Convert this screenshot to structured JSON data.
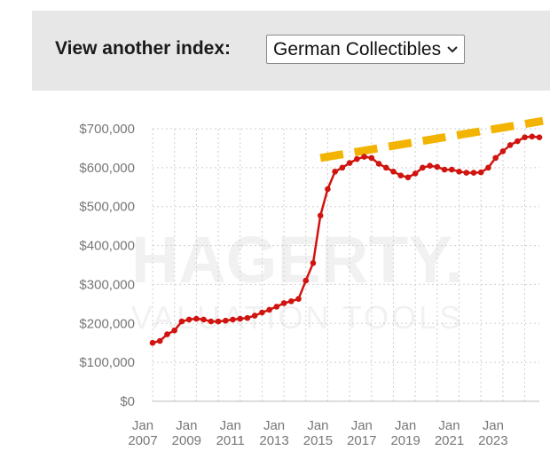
{
  "header": {
    "label": "View another index:",
    "selected_index": "German Collectibles"
  },
  "watermark": {
    "brand": "HAGERTY.",
    "subtitle": "VALUATION TOOLS"
  },
  "chart_data": {
    "type": "line",
    "title": "",
    "xlabel": "",
    "ylabel": "",
    "ylim": [
      0,
      700000
    ],
    "xlim": [
      "2007-01",
      "2024-09"
    ],
    "grid": true,
    "y_ticks": [
      {
        "value": 0,
        "label": "$0"
      },
      {
        "value": 100000,
        "label": "$100,000"
      },
      {
        "value": 200000,
        "label": "$200,000"
      },
      {
        "value": 300000,
        "label": "$300,000"
      },
      {
        "value": 400000,
        "label": "$400,000"
      },
      {
        "value": 500000,
        "label": "$500,000"
      },
      {
        "value": 600000,
        "label": "$600,000"
      },
      {
        "value": 700000,
        "label": "$700,000"
      }
    ],
    "x_ticks": [
      {
        "value": "2007-01",
        "label": [
          "Jan",
          "2007"
        ]
      },
      {
        "value": "2009-01",
        "label": [
          "Jan",
          "2009"
        ]
      },
      {
        "value": "2011-01",
        "label": [
          "Jan",
          "2011"
        ]
      },
      {
        "value": "2013-01",
        "label": [
          "Jan",
          "2013"
        ]
      },
      {
        "value": "2015-01",
        "label": [
          "Jan",
          "2015"
        ]
      },
      {
        "value": "2017-01",
        "label": [
          "Jan",
          "2017"
        ]
      },
      {
        "value": "2019-01",
        "label": [
          "Jan",
          "2019"
        ]
      },
      {
        "value": "2021-01",
        "label": [
          "Jan",
          "2021"
        ]
      },
      {
        "value": "2023-01",
        "label": [
          "Jan",
          "2023"
        ]
      }
    ],
    "series": [
      {
        "color": "#d0140f",
        "points": [
          [
            "2007-01",
            150000
          ],
          [
            "2007-05",
            155000
          ],
          [
            "2007-09",
            172000
          ],
          [
            "2008-01",
            182000
          ],
          [
            "2008-05",
            205000
          ],
          [
            "2008-09",
            210000
          ],
          [
            "2009-01",
            212000
          ],
          [
            "2009-05",
            210000
          ],
          [
            "2009-09",
            205000
          ],
          [
            "2010-01",
            205000
          ],
          [
            "2010-05",
            207000
          ],
          [
            "2010-09",
            210000
          ],
          [
            "2011-01",
            212000
          ],
          [
            "2011-05",
            214000
          ],
          [
            "2011-09",
            220000
          ],
          [
            "2012-01",
            228000
          ],
          [
            "2012-05",
            235000
          ],
          [
            "2012-09",
            243000
          ],
          [
            "2013-01",
            252000
          ],
          [
            "2013-05",
            257000
          ],
          [
            "2013-09",
            263000
          ],
          [
            "2014-01",
            310000
          ],
          [
            "2014-05",
            355000
          ],
          [
            "2014-09",
            477000
          ],
          [
            "2015-01",
            545000
          ],
          [
            "2015-05",
            590000
          ],
          [
            "2015-09",
            600000
          ],
          [
            "2016-01",
            612000
          ],
          [
            "2016-05",
            622000
          ],
          [
            "2016-09",
            628000
          ],
          [
            "2017-01",
            625000
          ],
          [
            "2017-05",
            610000
          ],
          [
            "2017-09",
            600000
          ],
          [
            "2018-01",
            590000
          ],
          [
            "2018-05",
            580000
          ],
          [
            "2018-09",
            575000
          ],
          [
            "2019-01",
            585000
          ],
          [
            "2019-05",
            600000
          ],
          [
            "2019-09",
            605000
          ],
          [
            "2020-01",
            602000
          ],
          [
            "2020-05",
            595000
          ],
          [
            "2020-09",
            595000
          ],
          [
            "2021-01",
            590000
          ],
          [
            "2021-05",
            587000
          ],
          [
            "2021-09",
            587000
          ],
          [
            "2022-01",
            588000
          ],
          [
            "2022-05",
            600000
          ],
          [
            "2022-09",
            625000
          ],
          [
            "2023-01",
            642000
          ],
          [
            "2023-05",
            658000
          ],
          [
            "2023-09",
            668000
          ],
          [
            "2024-01",
            678000
          ],
          [
            "2024-05",
            680000
          ],
          [
            "2024-09",
            678000
          ]
        ]
      }
    ],
    "trend_line": {
      "color": "#f2b400",
      "from": [
        "2014-09",
        625000
      ],
      "to": [
        "2024-09",
        720000
      ]
    }
  }
}
